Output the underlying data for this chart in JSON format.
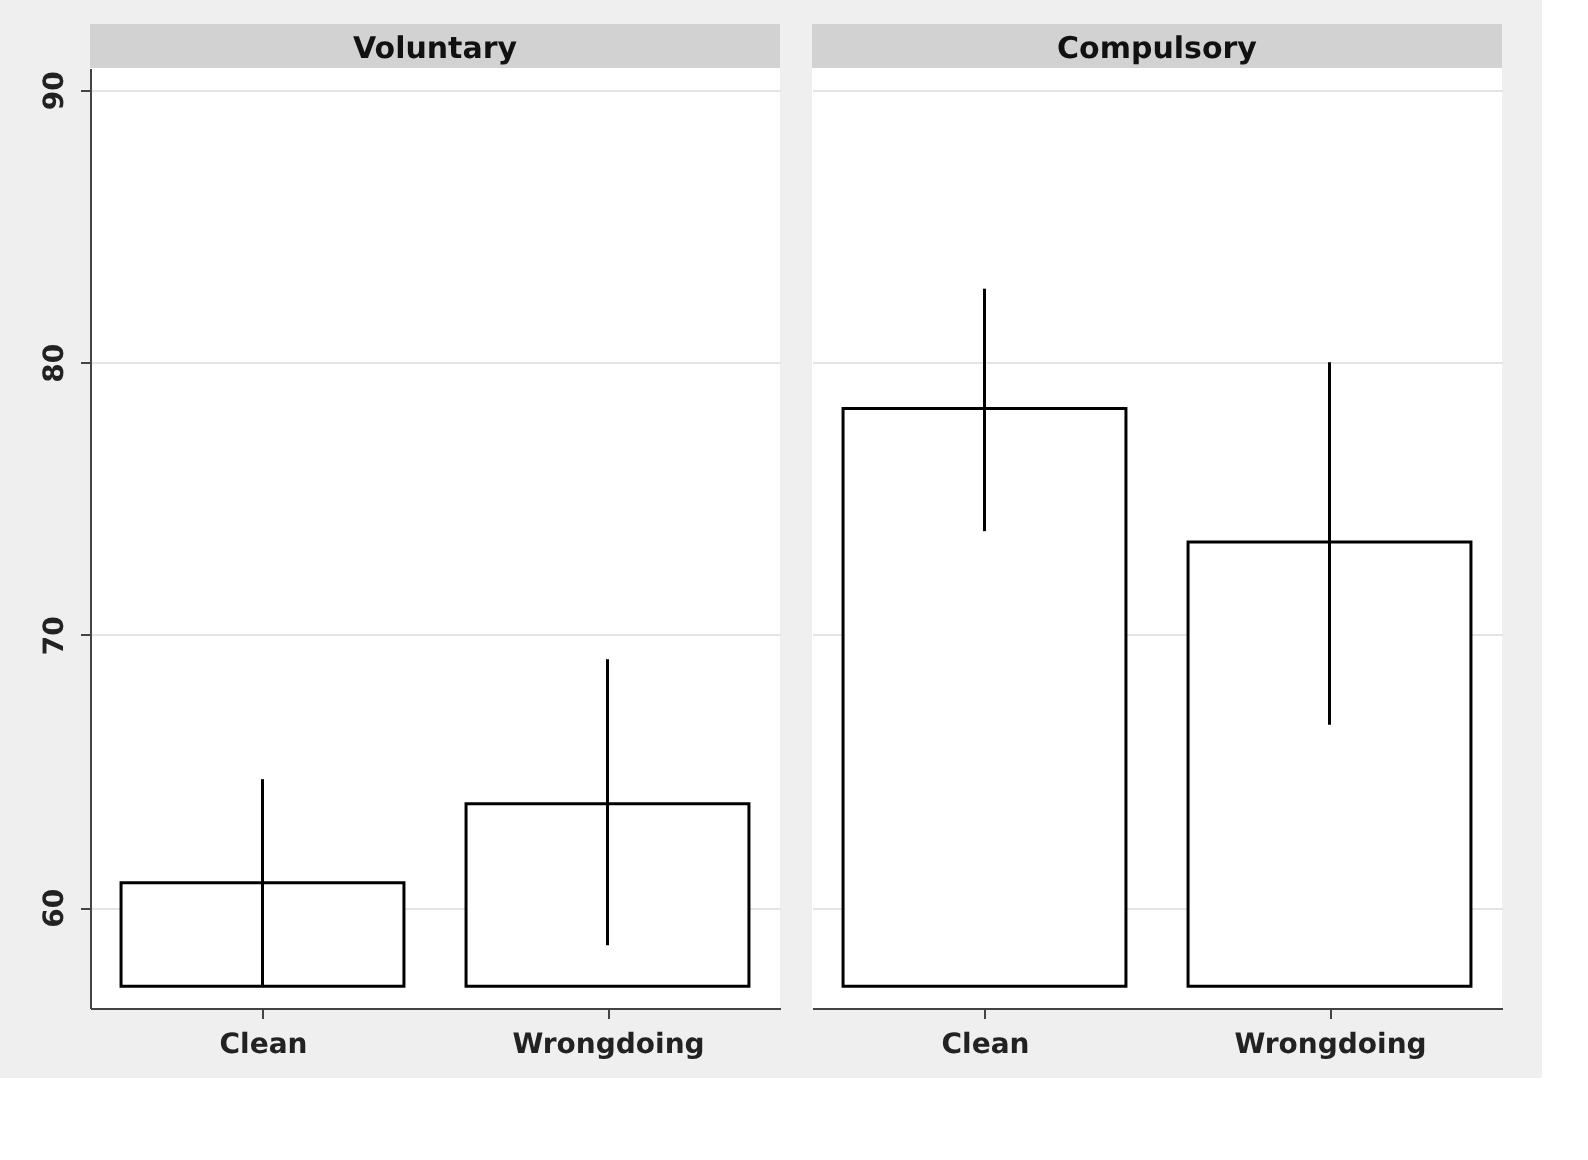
{
  "chart_data": [
    {
      "type": "bar",
      "title": "Voluntary",
      "categories": [
        "Clean",
        "Wrongdoing"
      ],
      "base": [
        57.1,
        57.1
      ],
      "values": [
        3.8,
        6.7
      ],
      "color": "#ffffff",
      "errors": [
        [
          57.1,
          64.7
        ],
        [
          58.6,
          69.1
        ]
      ],
      "ylim": [
        56.3,
        90.8
      ],
      "yticks": [
        60,
        70,
        80,
        90
      ],
      "grid": "y"
    },
    {
      "type": "bar",
      "title": "Compulsory",
      "categories": [
        "Clean",
        "Wrongdoing"
      ],
      "base": [
        57.1,
        57.1
      ],
      "values": [
        21.2,
        16.3
      ],
      "color": "#ffffff",
      "errors": [
        [
          73.8,
          82.7
        ],
        [
          66.7,
          80.0
        ]
      ],
      "ylim": [
        56.3,
        90.8
      ],
      "yticks": [
        60,
        70,
        80,
        90
      ],
      "grid": "y",
      "tick_labels": "x"
    }
  ]
}
